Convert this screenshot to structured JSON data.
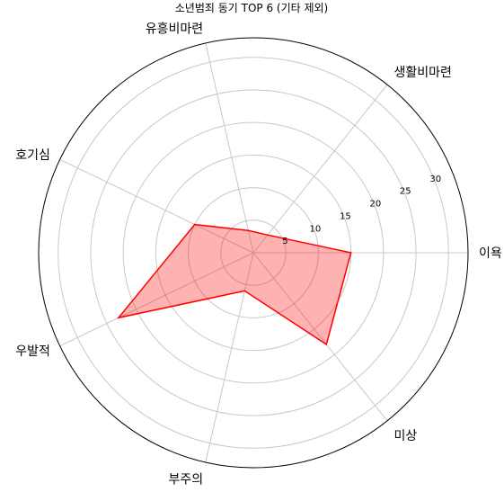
{
  "chart_data": {
    "type": "radar",
    "title": "소년범죄 동기 TOP 6 (기타 제외)",
    "categories": [
      "이욕",
      "생활비마련",
      "유흥비마련",
      "호기심",
      "우발적",
      "부주의",
      "미상"
    ],
    "series": [
      {
        "values": [
          15,
          3.5,
          3.5,
          10,
          23,
          6,
          18
        ]
      }
    ],
    "rlim": [
      0,
      33
    ],
    "r_ticks": [
      5,
      10,
      15,
      20,
      25,
      30
    ],
    "grid": true,
    "colors": {
      "fill": "#ff0000",
      "fill_opacity": 0.3,
      "line": "#ff0000",
      "grid": "#c8c8c8",
      "outer_ring": "#000000"
    }
  }
}
